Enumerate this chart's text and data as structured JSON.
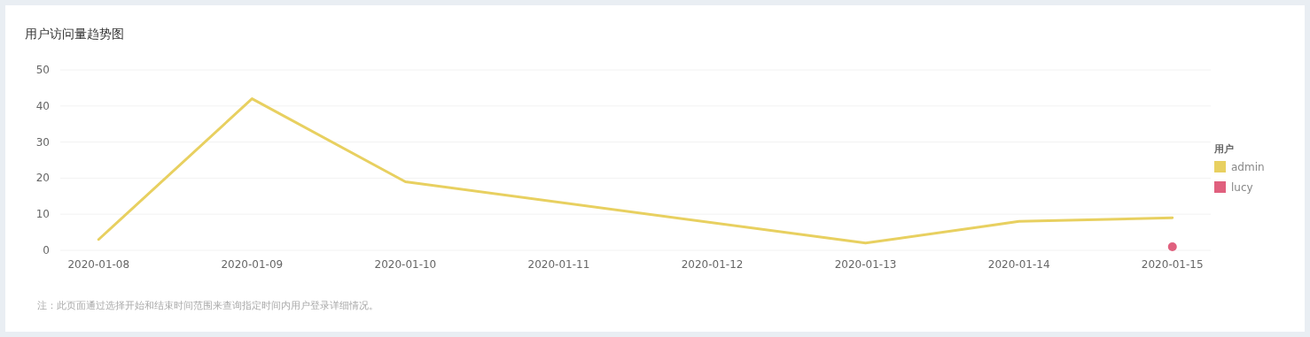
{
  "chart_data": {
    "type": "line",
    "title": "用户访问量趋势图",
    "xlim": [
      "2020-01-07T18:00",
      "2020-01-15T06:00"
    ],
    "xticks": [
      "2020-01-08",
      "2020-01-09",
      "2020-01-10",
      "2020-01-11",
      "2020-01-12",
      "2020-01-13",
      "2020-01-14",
      "2020-01-15"
    ],
    "ylim": [
      0,
      50
    ],
    "yticks": [
      0,
      10,
      20,
      30,
      40,
      50
    ],
    "grid": "y",
    "legend": "right",
    "legend_title": "用户",
    "series": [
      {
        "name": "admin",
        "type": "line",
        "color": "#e8d060",
        "marker": "none",
        "x": [
          "2020-01-08",
          "2020-01-09",
          "2020-01-10",
          "2020-01-13",
          "2020-01-14",
          "2020-01-15"
        ],
        "values": [
          3,
          42,
          19,
          2,
          8,
          9
        ]
      },
      {
        "name": "lucy",
        "type": "scatter",
        "color": "#e0607e",
        "marker": "circle",
        "x": [
          "2020-01-15"
        ],
        "values": [
          1
        ]
      }
    ],
    "annotations": [
      "注：此页面通过选择开始和结束时间范围来查询指定时间内用户登录详细情况。"
    ]
  }
}
